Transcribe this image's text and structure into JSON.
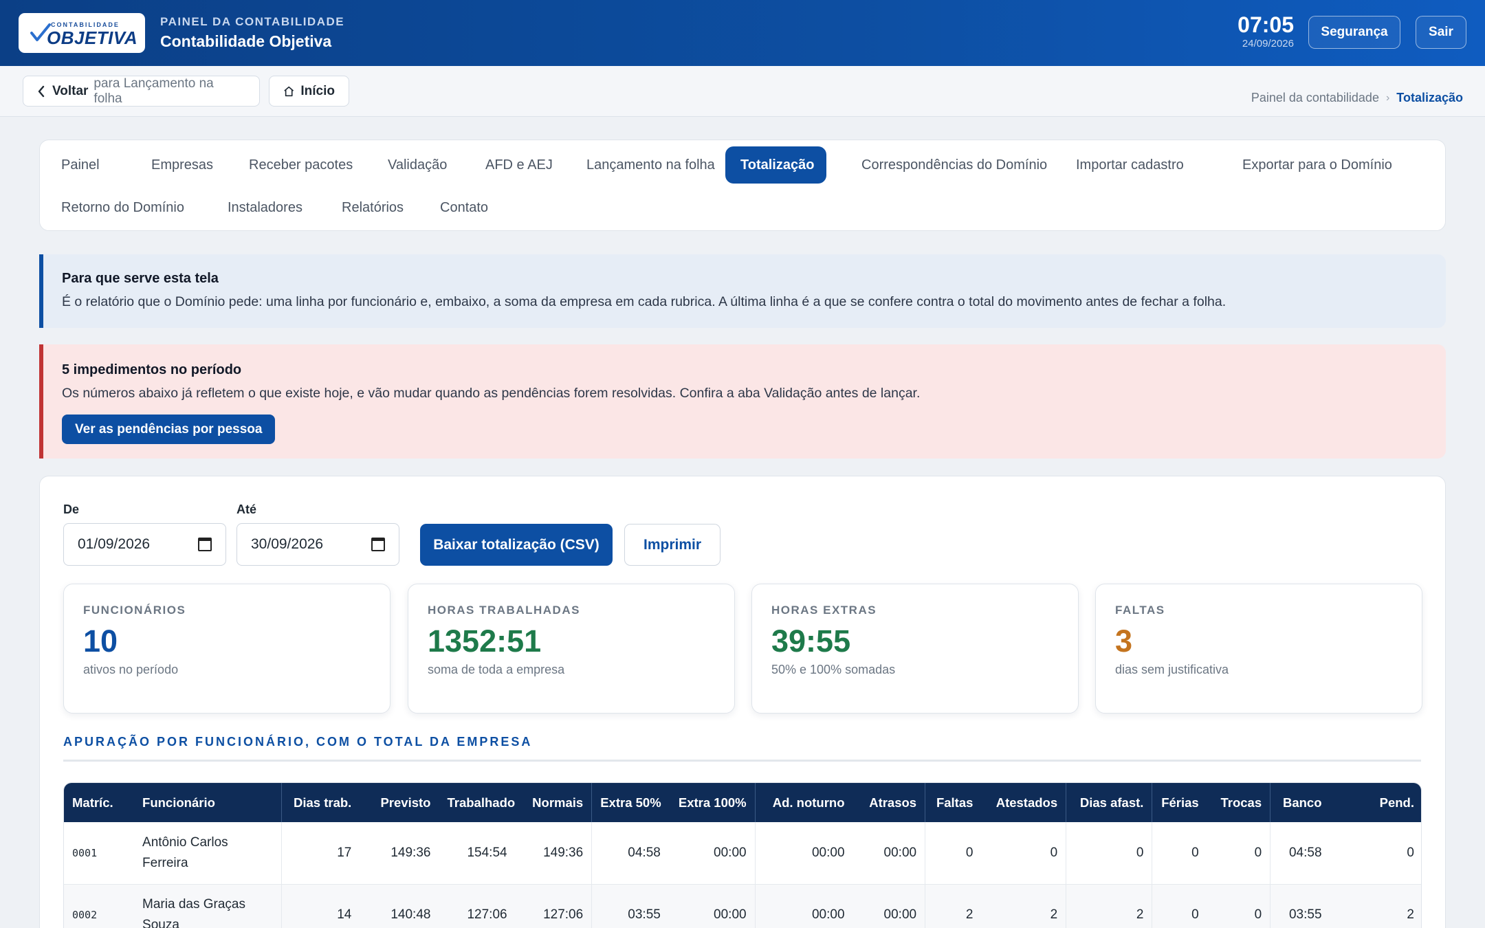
{
  "header": {
    "logo_small": "CONTABILIDADE",
    "logo_big": "OBJETIVA",
    "subtitle": "PAINEL DA CONTABILIDADE",
    "title": "Contabilidade Objetiva",
    "time": "07:05",
    "date": "24/09/2026",
    "security_label": "Segurança",
    "exit_label": "Sair"
  },
  "subbar": {
    "back_label": "Voltar",
    "back_target": "para Lançamento na folha",
    "home_label": "Início",
    "breadcrumb": [
      "Painel da contabilidade",
      "Totalização"
    ]
  },
  "tabs": [
    {
      "label": "Painel"
    },
    {
      "label": "Empresas"
    },
    {
      "label": "Receber pacotes"
    },
    {
      "label": "Validação"
    },
    {
      "label": "AFD e AEJ"
    },
    {
      "label": "Lançamento na folha"
    },
    {
      "label": "Totalização",
      "active": true
    },
    {
      "label": "Correspondências do Domínio"
    },
    {
      "label": "Importar cadastro"
    },
    {
      "label": "Exportar para o Domínio"
    },
    {
      "label": "Retorno do Domínio"
    },
    {
      "label": "Instaladores"
    },
    {
      "label": "Relatórios"
    },
    {
      "label": "Contato"
    }
  ],
  "info": {
    "title": "Para que serve esta tela",
    "text": "É o relatório que o Domínio pede: uma linha por funcionário e, embaixo, a soma da empresa em cada rubrica. A última linha é a que se confere contra o total do movimento antes de fechar a folha."
  },
  "alert": {
    "title": "5 impedimentos no período",
    "text": "Os números abaixo já refletem o que existe hoje, e vão mudar quando as pendências forem resolvidas. Confira a aba Validação antes de lançar.",
    "button_label": "Ver as pendências por pessoa"
  },
  "filters": {
    "from_label": "De",
    "from_value": "01/09/2026",
    "to_label": "Até",
    "to_value": "30/09/2026",
    "download_label": "Baixar totalização (CSV)",
    "print_label": "Imprimir"
  },
  "stats": [
    {
      "label": "FUNCIONÁRIOS",
      "value": "10",
      "sub": "ativos no período",
      "color": "#0d4fa3"
    },
    {
      "label": "HORAS TRABALHADAS",
      "value": "1352:51",
      "sub": "soma de toda a empresa",
      "color": "#1e7a4a"
    },
    {
      "label": "HORAS EXTRAS",
      "value": "39:55",
      "sub": "50% e 100% somadas",
      "color": "#1e7a4a"
    },
    {
      "label": "FALTAS",
      "value": "3",
      "sub": "dias sem justificativa",
      "color": "#c4741f"
    }
  ],
  "table": {
    "section_title": "APURAÇÃO POR FUNCIONÁRIO, COM O TOTAL DA EMPRESA",
    "columns": [
      "Matríc.",
      "Funcionário",
      "Dias trab.",
      "Previsto",
      "Trabalhado",
      "Normais",
      "Extra 50%",
      "Extra 100%",
      "Ad. noturno",
      "Atrasos",
      "Faltas",
      "Atestados",
      "Dias afast.",
      "Férias",
      "Trocas",
      "Banco",
      "Pend."
    ],
    "rows": [
      [
        "0001",
        "Antônio Carlos Ferreira",
        "17",
        "149:36",
        "154:54",
        "149:36",
        "04:58",
        "00:00",
        "00:00",
        "00:00",
        "0",
        "0",
        "0",
        "0",
        "0",
        "04:58",
        "0"
      ],
      [
        "0002",
        "Maria das Graças Souza",
        "14",
        "140:48",
        "127:06",
        "127:06",
        "03:55",
        "00:00",
        "00:00",
        "00:00",
        "2",
        "2",
        "2",
        "0",
        "0",
        "03:55",
        "2"
      ]
    ]
  },
  "colors": {
    "primary": "#0d4fa3",
    "header_dark": "#0b3f86",
    "table_header": "#0f2c57",
    "alert_border": "#c03434",
    "green": "#1e7a4a",
    "orange": "#c4741f"
  }
}
